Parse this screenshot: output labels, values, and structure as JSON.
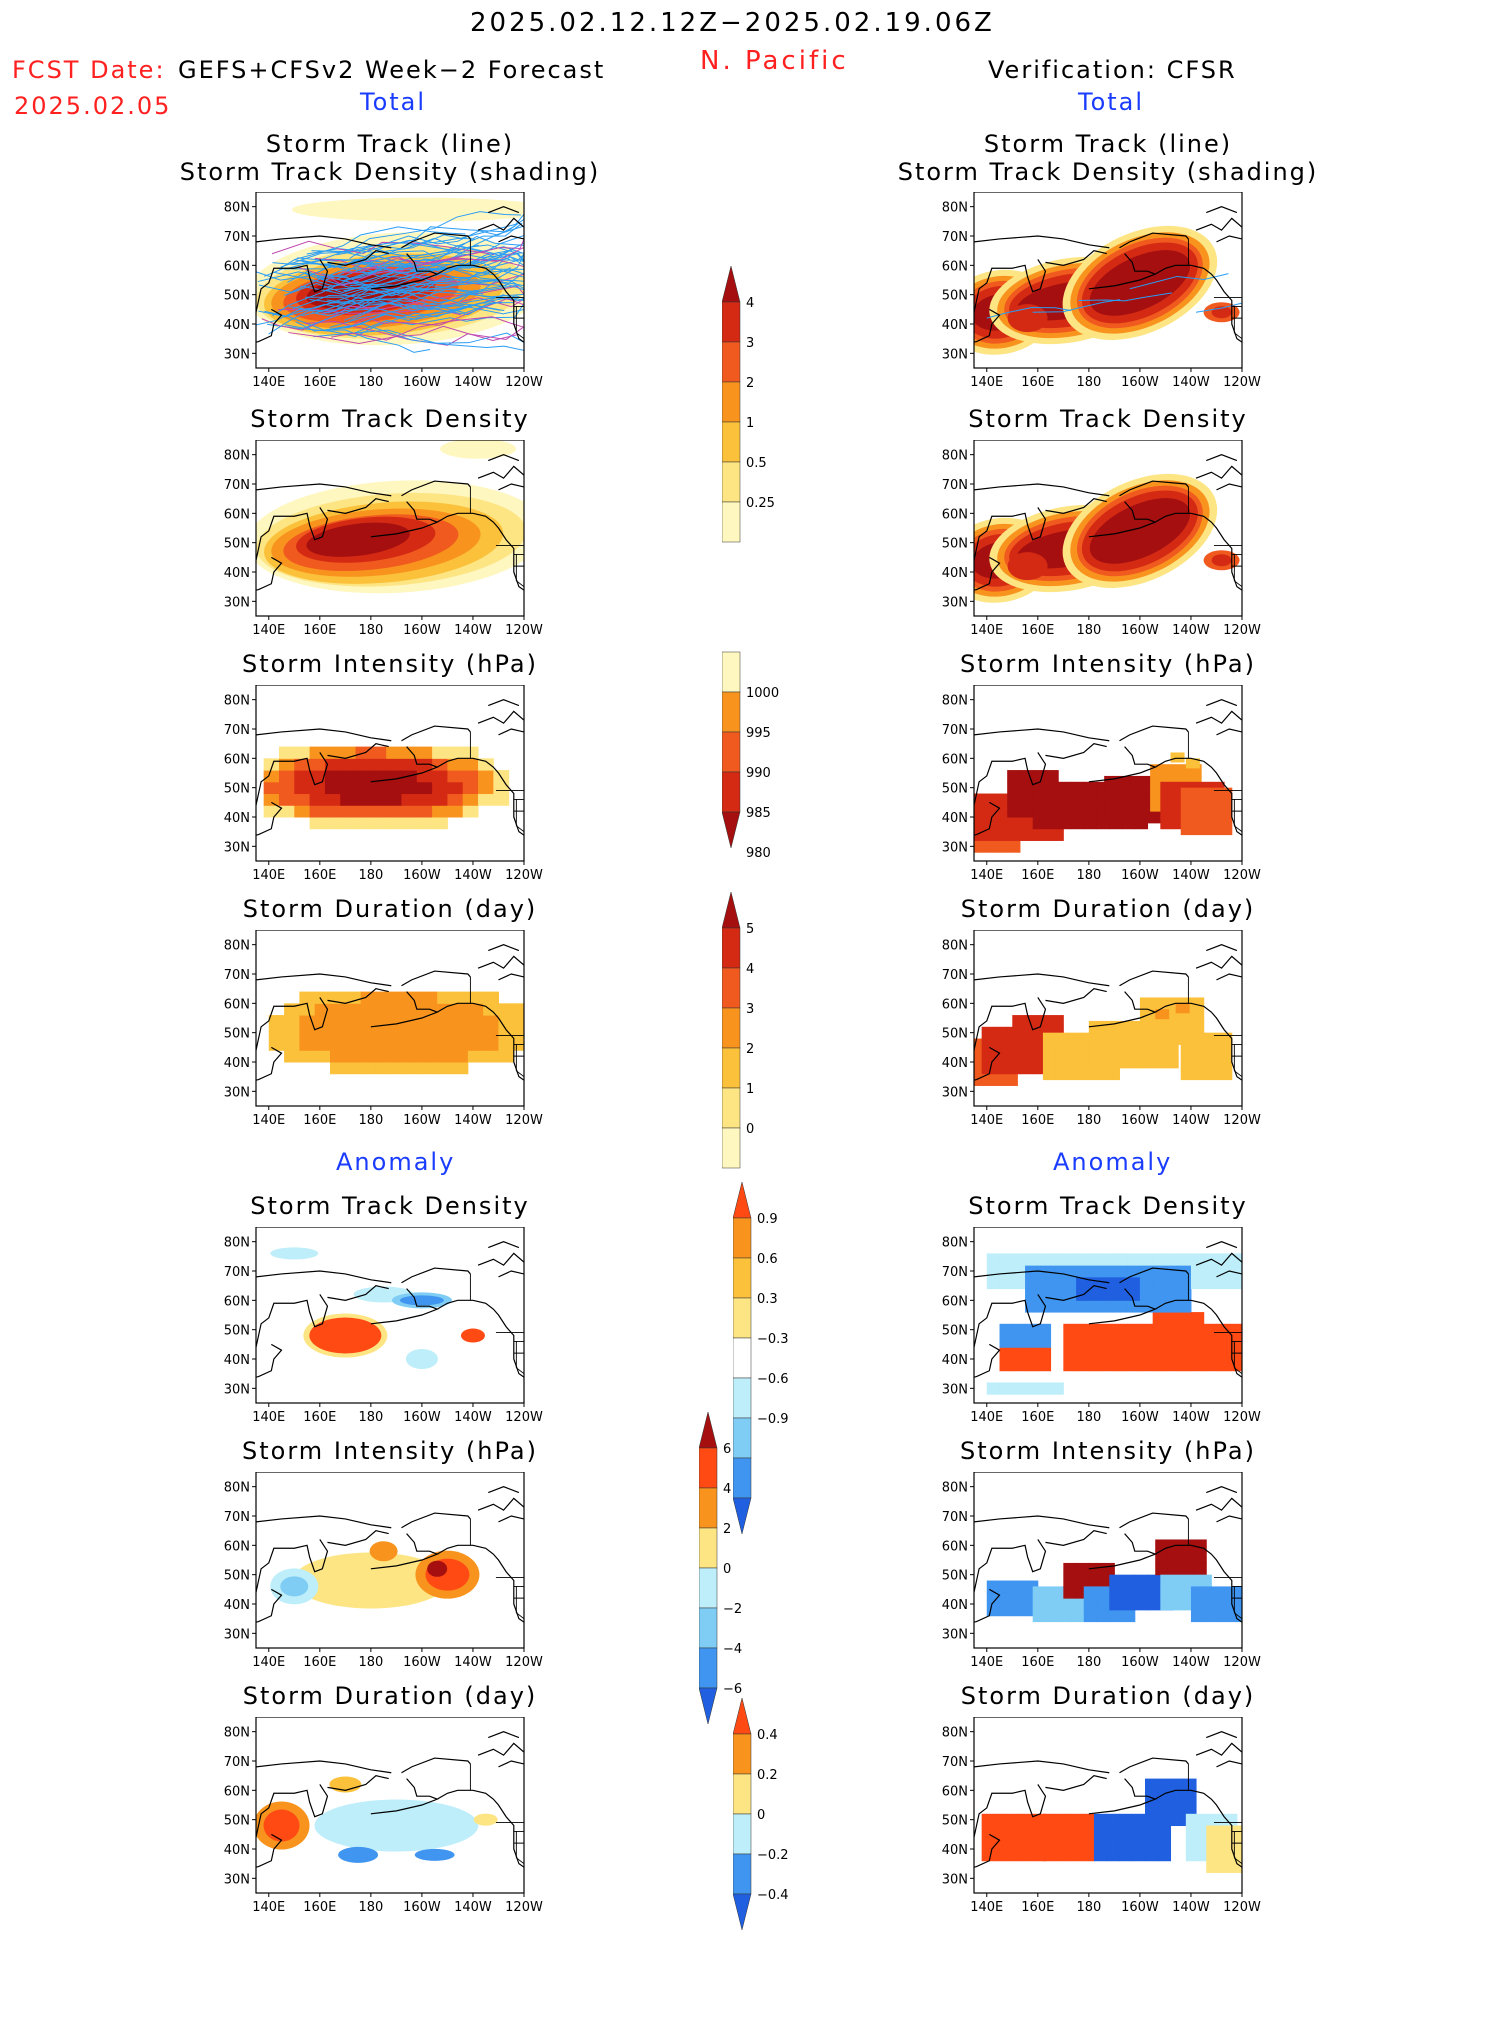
{
  "header": {
    "period": "2025.02.12.12Z−2025.02.19.06Z",
    "region": "N. Pacific",
    "fcst_label": "FCST Date:",
    "fcst_date": "2025.02.05",
    "model": "GEFS+CFSv2 Week−2 Forecast",
    "verification": "Verification: CFSR"
  },
  "sections": {
    "total": "Total",
    "anomaly": "Anomaly"
  },
  "panel_titles": {
    "track1": "Storm Track (line)",
    "track2": "Storm Track Density (shading)",
    "density": "Storm Track Density",
    "intensity": "Storm Intensity (hPa)",
    "duration": "Storm Duration (day)"
  },
  "axes": {
    "lat_ticks": [
      "80N",
      "70N",
      "60N",
      "50N",
      "40N",
      "30N"
    ],
    "lon_ticks": [
      "140E",
      "160E",
      "180",
      "160W",
      "140W",
      "120W"
    ]
  },
  "colorbars": {
    "density_total": {
      "ticks": [
        "4",
        "3",
        "2",
        "1",
        "0.5",
        "0.25"
      ],
      "colors": [
        "#a50f0f",
        "#d42a14",
        "#f05a1e",
        "#f8941e",
        "#fbc13b",
        "#fde584",
        "#fff7c0"
      ]
    },
    "intensity_total": {
      "ticks": [
        "1000",
        "995",
        "990",
        "985",
        "980"
      ],
      "colors": [
        "#fff7c0",
        "#f8941e",
        "#f05a1e",
        "#d42a14",
        "#a50f0f"
      ]
    },
    "duration_total": {
      "ticks": [
        "5",
        "4",
        "3",
        "2",
        "1",
        "0"
      ],
      "colors": [
        "#a50f0f",
        "#d42a14",
        "#f05a1e",
        "#f8941e",
        "#fbc13b",
        "#fde584",
        "#fff7c0"
      ]
    },
    "density_anom": {
      "ticks": [
        "0.9",
        "0.6",
        "0.3",
        "−0.3",
        "−0.6",
        "−0.9"
      ],
      "colors": [
        "#ff4a14",
        "#f8941e",
        "#fbc13b",
        "#fde584",
        "#ffffff",
        "#bdeefa",
        "#7fcdf5",
        "#3f95f0",
        "#1f5fe0"
      ]
    },
    "intensity_anom": {
      "ticks": [
        "6",
        "4",
        "2",
        "0",
        "−2",
        "−4",
        "−6"
      ],
      "colors": [
        "#a50f0f",
        "#ff4a14",
        "#f8941e",
        "#fde584",
        "#bdeefa",
        "#7fcdf5",
        "#3f95f0",
        "#1f5fe0"
      ]
    },
    "duration_anom": {
      "ticks": [
        "0.4",
        "0.2",
        "0",
        "−0.2",
        "−0.4"
      ],
      "colors": [
        "#ff4a14",
        "#f8941e",
        "#fde584",
        "#bdeefa",
        "#3f95f0",
        "#1f5fe0"
      ]
    }
  }
}
